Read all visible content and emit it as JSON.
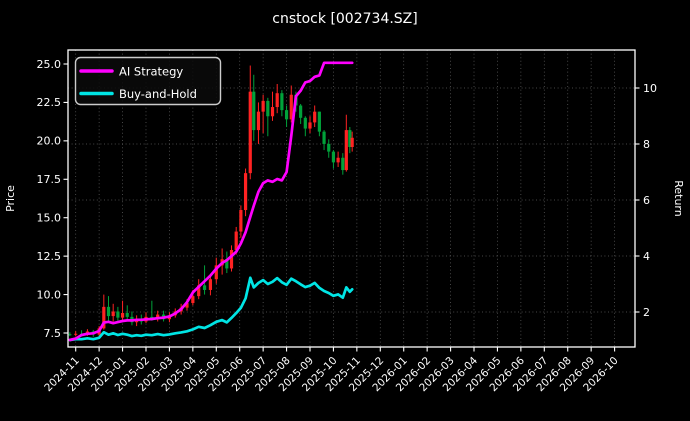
{
  "title": "cnstock [002734.SZ]",
  "axes": {
    "left": {
      "label": "Price",
      "ticks": [
        7.5,
        10.0,
        12.5,
        15.0,
        17.5,
        20.0,
        22.5,
        25.0
      ]
    },
    "right": {
      "label": "Return",
      "ticks": [
        2,
        4,
        6,
        8,
        10
      ]
    },
    "x": {
      "labels": [
        "2024-11",
        "2024-12",
        "2025-01",
        "2025-02",
        "2025-03",
        "2025-04",
        "2025-05",
        "2025-06",
        "2025-07",
        "2025-08",
        "2025-09",
        "2025-10",
        "2025-11",
        "2025-12",
        "2026-01",
        "2026-02",
        "2026-03",
        "2026-04",
        "2026-05",
        "2026-06",
        "2026-07",
        "2026-08",
        "2026-09",
        "2026-10"
      ]
    }
  },
  "legend": [
    {
      "label": "AI Strategy",
      "color": "#ff00ff"
    },
    {
      "label": "Buy-and-Hold",
      "color": "#00e5e5"
    }
  ],
  "colors": {
    "background": "#000000",
    "foreground": "#ffffff",
    "grid": "#aaaaaa",
    "candle_up": "#ff2222",
    "candle_down": "#00a23a",
    "ai_line": "#ff00ff",
    "bh_line": "#00e5e5",
    "legend_border": "#cccccc",
    "legend_fill": "#0a0a0a"
  },
  "chart_data": {
    "type": "candlestick+line",
    "title": "cnstock [002734.SZ]",
    "xlabel": "",
    "ylabel_left": "Price",
    "ylabel_right": "Return",
    "x_unit": "months since 2024-11 (tick index)",
    "xlim": [
      -0.33,
      23.9
    ],
    "ylim_price": [
      6.6,
      25.9
    ],
    "ylim_return": [
      0.75,
      11.4
    ],
    "grid": "dotted, vertical at each month + horizontal at return ticks",
    "legend_position": "upper-left",
    "data_end_label": "late 2025-10 (series stop ~45% across axis)",
    "candles": {
      "t": [
        -0.25,
        0.0,
        0.25,
        0.5,
        0.75,
        1.0,
        1.2,
        1.4,
        1.6,
        1.8,
        2.0,
        2.2,
        2.4,
        2.6,
        2.8,
        3.0,
        3.25,
        3.5,
        3.75,
        4.0,
        4.25,
        4.5,
        4.75,
        5.0,
        5.25,
        5.5,
        5.75,
        6.0,
        6.25,
        6.45,
        6.65,
        6.85,
        7.05,
        7.25,
        7.45,
        7.6,
        7.8,
        8.0,
        8.2,
        8.4,
        8.6,
        8.8,
        9.0,
        9.2,
        9.4,
        9.6,
        9.8,
        10.0,
        10.2,
        10.4,
        10.6,
        10.8,
        11.0,
        11.2,
        11.4,
        11.55,
        11.7,
        11.8
      ],
      "open": [
        7.42,
        7.4,
        7.45,
        7.38,
        7.6,
        7.4,
        7.8,
        9.2,
        8.6,
        8.9,
        8.5,
        8.8,
        8.55,
        8.2,
        8.4,
        8.25,
        8.55,
        8.45,
        8.7,
        8.4,
        8.65,
        8.9,
        9.15,
        9.45,
        9.9,
        10.6,
        10.3,
        11.0,
        11.9,
        12.3,
        11.7,
        12.9,
        14.1,
        15.5,
        17.9,
        23.2,
        20.7,
        21.9,
        22.6,
        21.6,
        22.2,
        23.1,
        22.0,
        21.4,
        23.0,
        22.3,
        21.5,
        20.8,
        21.2,
        21.9,
        20.6,
        19.8,
        19.3,
        18.6,
        18.9,
        18.1,
        20.7,
        19.6
      ],
      "high": [
        7.55,
        7.62,
        7.68,
        7.75,
        7.7,
        7.95,
        10.0,
        9.9,
        9.4,
        9.2,
        9.6,
        9.3,
        8.9,
        8.65,
        8.7,
        8.85,
        9.6,
        8.95,
        8.95,
        8.85,
        9.1,
        9.4,
        9.7,
        10.3,
        11.0,
        11.9,
        11.2,
        12.4,
        13.0,
        12.8,
        13.2,
        14.4,
        15.8,
        18.2,
        24.9,
        24.3,
        22.5,
        23.0,
        22.8,
        23.2,
        23.7,
        23.3,
        22.3,
        23.6,
        23.2,
        22.4,
        21.6,
        21.6,
        22.3,
        21.9,
        20.7,
        20.1,
        19.4,
        19.3,
        19.2,
        21.7,
        20.9,
        20.6
      ],
      "low": [
        7.3,
        7.28,
        7.3,
        7.32,
        7.25,
        7.32,
        7.72,
        8.3,
        8.25,
        8.3,
        8.25,
        8.4,
        8.0,
        7.95,
        8.05,
        8.15,
        8.3,
        8.25,
        8.25,
        8.2,
        8.5,
        8.7,
        8.95,
        9.3,
        9.7,
        10.0,
        9.95,
        10.7,
        11.3,
        11.4,
        11.5,
        12.6,
        13.7,
        15.1,
        17.5,
        20.0,
        19.8,
        20.5,
        20.3,
        21.3,
        21.8,
        21.6,
        20.9,
        21.2,
        21.9,
        21.1,
        20.3,
        20.5,
        20.9,
        20.3,
        19.4,
        18.9,
        18.2,
        18.3,
        17.8,
        18.0,
        19.2,
        19.3
      ],
      "close": [
        7.4,
        7.45,
        7.38,
        7.6,
        7.4,
        7.8,
        9.2,
        8.6,
        8.9,
        8.5,
        8.8,
        8.55,
        8.2,
        8.4,
        8.25,
        8.55,
        8.45,
        8.7,
        8.4,
        8.65,
        8.9,
        9.15,
        9.45,
        9.9,
        10.6,
        10.3,
        11.0,
        11.9,
        12.3,
        11.7,
        12.9,
        14.1,
        15.5,
        17.9,
        23.2,
        20.7,
        21.9,
        22.6,
        21.6,
        22.2,
        23.1,
        22.0,
        21.4,
        23.0,
        22.3,
        21.5,
        20.8,
        21.2,
        21.9,
        20.6,
        19.8,
        19.3,
        18.6,
        18.9,
        18.1,
        20.7,
        19.6,
        20.2
      ]
    },
    "series": [
      {
        "name": "AI Strategy",
        "axis": "return",
        "color": "#ff00ff",
        "t": [
          -0.25,
          0.0,
          0.25,
          0.5,
          0.75,
          1.0,
          1.2,
          1.4,
          1.6,
          1.8,
          2.0,
          2.2,
          2.4,
          2.6,
          2.8,
          3.0,
          3.25,
          3.5,
          3.75,
          4.0,
          4.25,
          4.5,
          4.75,
          5.0,
          5.25,
          5.5,
          5.75,
          6.0,
          6.25,
          6.45,
          6.65,
          6.85,
          7.05,
          7.25,
          7.45,
          7.6,
          7.8,
          8.0,
          8.2,
          8.4,
          8.6,
          8.8,
          9.0,
          9.2,
          9.4,
          9.6,
          9.8,
          10.0,
          10.2,
          10.4,
          10.6,
          10.8,
          11.0,
          11.2,
          11.4,
          11.55,
          11.7,
          11.8
        ],
        "values": [
          1.0,
          1.05,
          1.18,
          1.22,
          1.24,
          1.32,
          1.62,
          1.65,
          1.6,
          1.64,
          1.68,
          1.7,
          1.7,
          1.72,
          1.72,
          1.74,
          1.75,
          1.78,
          1.8,
          1.84,
          1.95,
          2.1,
          2.35,
          2.7,
          2.9,
          3.1,
          3.3,
          3.55,
          3.75,
          3.85,
          4.0,
          4.15,
          4.45,
          4.85,
          5.4,
          5.8,
          6.3,
          6.6,
          6.7,
          6.65,
          6.75,
          6.7,
          7.0,
          8.3,
          9.7,
          9.9,
          10.2,
          10.25,
          10.4,
          10.45,
          10.9,
          10.9,
          10.9,
          10.9,
          10.9,
          10.9,
          10.9,
          10.9
        ]
      },
      {
        "name": "Buy-and-Hold",
        "axis": "return",
        "color": "#00e5e5",
        "t": [
          -0.25,
          0.0,
          0.25,
          0.5,
          0.75,
          1.0,
          1.2,
          1.4,
          1.6,
          1.8,
          2.0,
          2.2,
          2.4,
          2.6,
          2.8,
          3.0,
          3.25,
          3.5,
          3.75,
          4.0,
          4.25,
          4.5,
          4.75,
          5.0,
          5.25,
          5.5,
          5.75,
          6.0,
          6.25,
          6.45,
          6.65,
          6.85,
          7.05,
          7.25,
          7.45,
          7.6,
          7.8,
          8.0,
          8.2,
          8.4,
          8.6,
          8.8,
          9.0,
          9.2,
          9.4,
          9.6,
          9.8,
          10.0,
          10.2,
          10.4,
          10.6,
          10.8,
          11.0,
          11.2,
          11.4,
          11.55,
          11.7,
          11.8
        ],
        "values": [
          1.0,
          1.03,
          1.03,
          1.06,
          1.03,
          1.08,
          1.28,
          1.19,
          1.24,
          1.18,
          1.22,
          1.19,
          1.14,
          1.17,
          1.15,
          1.19,
          1.17,
          1.21,
          1.17,
          1.2,
          1.24,
          1.27,
          1.31,
          1.38,
          1.47,
          1.43,
          1.53,
          1.65,
          1.71,
          1.63,
          1.79,
          1.96,
          2.15,
          2.49,
          3.22,
          2.88,
          3.04,
          3.14,
          3.0,
          3.08,
          3.21,
          3.06,
          2.97,
          3.19,
          3.1,
          2.99,
          2.89,
          2.94,
          3.04,
          2.86,
          2.75,
          2.68,
          2.58,
          2.63,
          2.51,
          2.88,
          2.72,
          2.81
        ]
      }
    ]
  }
}
